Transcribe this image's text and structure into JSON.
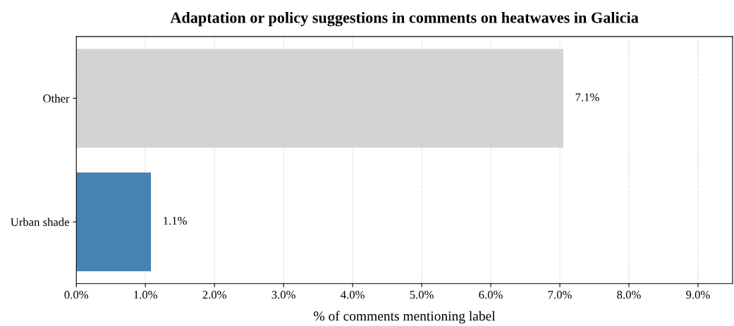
{
  "chart_data": {
    "type": "bar",
    "orientation": "horizontal",
    "title": "Adaptation or policy suggestions in comments on heatwaves in Galicia",
    "xlabel": "% of comments mentioning label",
    "categories": [
      "Other",
      "Urban shade"
    ],
    "values": [
      7.05,
      1.08
    ],
    "colors": [
      "#d3d3d3",
      "#4682b4"
    ],
    "value_labels": [
      "7.1%",
      "1.1%"
    ],
    "xlim": [
      0,
      9.5
    ],
    "xticks": [
      {
        "value": 0,
        "label": "0.0%"
      },
      {
        "value": 1,
        "label": "1.0%"
      },
      {
        "value": 2,
        "label": "2.0%"
      },
      {
        "value": 3,
        "label": "3.0%"
      },
      {
        "value": 4,
        "label": "4.0%"
      },
      {
        "value": 5,
        "label": "5.0%"
      },
      {
        "value": 6,
        "label": "6.0%"
      },
      {
        "value": 7,
        "label": "7.0%"
      },
      {
        "value": 8,
        "label": "8.0%"
      },
      {
        "value": 9,
        "label": "9.0%"
      }
    ],
    "grid": "x",
    "legend": false
  }
}
